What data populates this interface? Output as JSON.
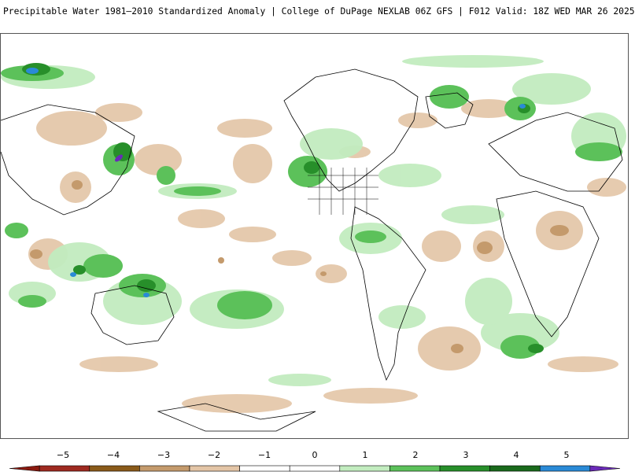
{
  "header": {
    "title": "Precipitable Water 1981–2010 Standardized Anomaly | College of DuPage NEXLAB  06Z GFS | F012 Valid: 18Z WED MAR 26 2025"
  },
  "map": {
    "projection": "equirectangular global",
    "background_color": "#ffffff",
    "coastline_color": "#000000"
  },
  "legend": {
    "ticks": [
      "−5",
      "−4",
      "−3",
      "−2",
      "−1",
      "0",
      "1",
      "2",
      "3",
      "4",
      "5"
    ],
    "bins": [
      {
        "range": "<-5",
        "color": "#8b1a10"
      },
      {
        "range": "-5 to -4",
        "color": "#9e2a20"
      },
      {
        "range": "-4 to -3",
        "color": "#8a5a1a"
      },
      {
        "range": "-3 to -2",
        "color": "#c49a6c"
      },
      {
        "range": "-2 to -1",
        "color": "#e3c5a6"
      },
      {
        "range": "-1 to 0",
        "color": "#ffffff"
      },
      {
        "range": "0 to 1",
        "color": "#ffffff"
      },
      {
        "range": "1 to 2",
        "color": "#c2ecbf"
      },
      {
        "range": "2 to 3",
        "color": "#5cc15a"
      },
      {
        "range": "3 to 4",
        "color": "#278f2a"
      },
      {
        "range": "4 to 5",
        "color": "#1a6a1c"
      },
      {
        "range": "5 to 6",
        "color": "#2a8ad6"
      },
      {
        "range": ">6",
        "color": "#6a2ab8"
      }
    ]
  }
}
